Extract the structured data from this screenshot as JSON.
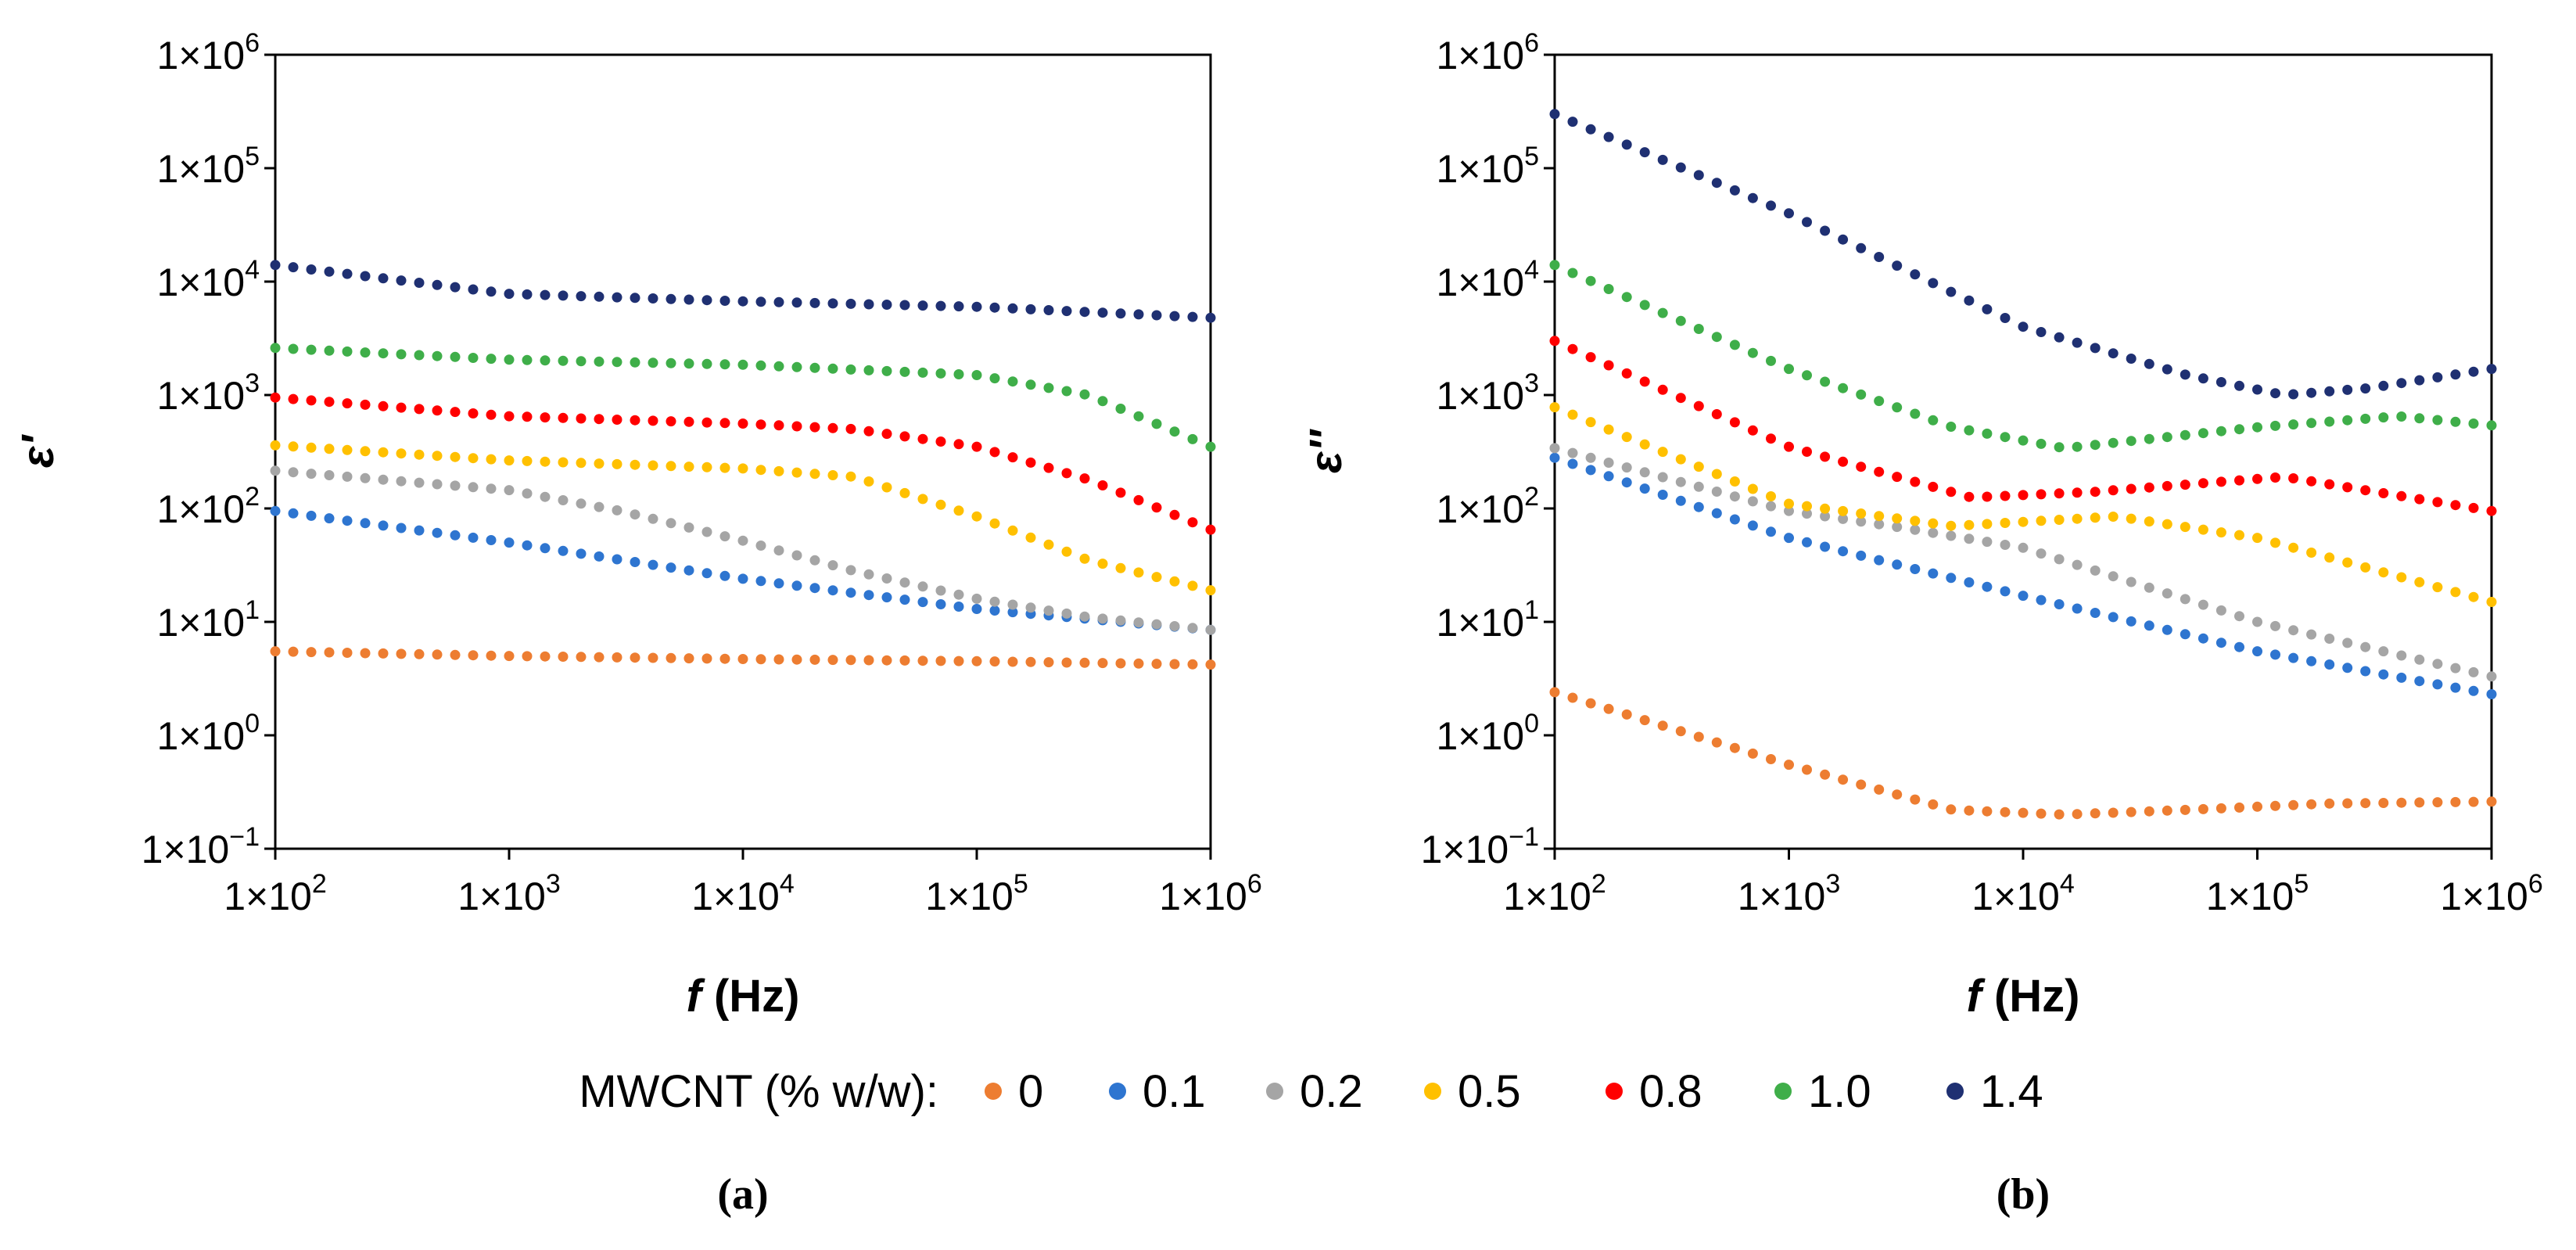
{
  "legend": {
    "title": "MWCNT (% w/w):",
    "entries": [
      {
        "label": "0",
        "color": "#ED7D31"
      },
      {
        "label": "0.1",
        "color": "#2E75D0"
      },
      {
        "label": "0.2",
        "color": "#A5A5A5"
      },
      {
        "label": "0.5",
        "color": "#FFC000"
      },
      {
        "label": "0.8",
        "color": "#FF0000"
      },
      {
        "label": "1.0",
        "color": "#3FAE49"
      },
      {
        "label": "1.4",
        "color": "#1F3072"
      }
    ]
  },
  "chart_data": [
    {
      "type": "scatter",
      "panel_label": "(a)",
      "xlabel_symbol": "f",
      "xlabel_unit": " (Hz)",
      "ylabel": "ε'",
      "x_scale": "log",
      "y_scale": "log",
      "xlim": [
        100,
        1000000
      ],
      "ylim": [
        0.1,
        1000000
      ],
      "x_tick_exponents": [
        "2",
        "3",
        "4",
        "5",
        "6"
      ],
      "y_tick_exponents": [
        "6",
        "5",
        "4",
        "3",
        "2",
        "1",
        "0",
        "−1"
      ],
      "tick_mantissa": "1×10",
      "grid": false,
      "series": [
        {
          "name": "0",
          "color": "#ED7D31",
          "x": [
            100,
            1000,
            10000,
            100000,
            1000000
          ],
          "y": [
            5.5,
            5.0,
            4.7,
            4.5,
            4.2
          ]
        },
        {
          "name": "0.1",
          "color": "#2E75D0",
          "x": [
            100,
            1000,
            10000,
            100000,
            1000000
          ],
          "y": [
            95,
            50,
            24,
            13,
            8.5
          ]
        },
        {
          "name": "0.2",
          "color": "#A5A5A5",
          "x": [
            100,
            1000,
            3000,
            10000,
            30000,
            100000,
            300000,
            1000000
          ],
          "y": [
            215,
            145,
            95,
            52,
            28,
            16,
            11,
            8.5
          ]
        },
        {
          "name": "0.5",
          "color": "#FFC000",
          "x": [
            100,
            1000,
            10000,
            30000,
            100000,
            300000,
            1000000
          ],
          "y": [
            360,
            265,
            225,
            190,
            85,
            35,
            19
          ]
        },
        {
          "name": "0.8",
          "color": "#FF0000",
          "x": [
            100,
            1000,
            10000,
            30000,
            100000,
            300000,
            1000000
          ],
          "y": [
            950,
            650,
            560,
            500,
            350,
            180,
            65
          ]
        },
        {
          "name": "1.0",
          "color": "#3FAE49",
          "x": [
            100,
            1000,
            10000,
            100000,
            300000,
            1000000
          ],
          "y": [
            2600,
            2050,
            1850,
            1500,
            1000,
            350
          ]
        },
        {
          "name": "1.4",
          "color": "#1F3072",
          "x": [
            100,
            1000,
            10000,
            100000,
            1000000
          ],
          "y": [
            14000,
            7800,
            6700,
            6000,
            4800
          ]
        }
      ]
    },
    {
      "type": "scatter",
      "panel_label": "(b)",
      "xlabel_symbol": "f",
      "xlabel_unit": " (Hz)",
      "ylabel": "ε''",
      "x_scale": "log",
      "y_scale": "log",
      "xlim": [
        100,
        1000000
      ],
      "ylim": [
        0.1,
        1000000
      ],
      "x_tick_exponents": [
        "2",
        "3",
        "4",
        "5",
        "6"
      ],
      "y_tick_exponents": [
        "6",
        "5",
        "4",
        "3",
        "2",
        "1",
        "0",
        "−1"
      ],
      "tick_mantissa": "1×10",
      "grid": false,
      "series": [
        {
          "name": "0",
          "color": "#ED7D31",
          "x": [
            100,
            1000,
            5000,
            15000,
            50000,
            200000,
            1000000
          ],
          "y": [
            2.4,
            0.55,
            0.22,
            0.2,
            0.22,
            0.25,
            0.26
          ]
        },
        {
          "name": "0.1",
          "color": "#2E75D0",
          "x": [
            100,
            1000,
            10000,
            100000,
            1000000
          ],
          "y": [
            280,
            55,
            17,
            5.5,
            2.3
          ]
        },
        {
          "name": "0.2",
          "color": "#A5A5A5",
          "x": [
            100,
            1000,
            3000,
            10000,
            100000,
            1000000
          ],
          "y": [
            340,
            95,
            68,
            45,
            10,
            3.3
          ]
        },
        {
          "name": "0.5",
          "color": "#FFC000",
          "x": [
            100,
            1000,
            5000,
            25000,
            100000,
            1000000
          ],
          "y": [
            780,
            110,
            70,
            85,
            55,
            15
          ]
        },
        {
          "name": "0.8",
          "color": "#FF0000",
          "x": [
            100,
            1000,
            6000,
            20000,
            130000,
            1000000
          ],
          "y": [
            3000,
            350,
            125,
            140,
            190,
            95
          ]
        },
        {
          "name": "1.0",
          "color": "#3FAE49",
          "x": [
            100,
            1000,
            5000,
            15000,
            100000,
            400000,
            1000000
          ],
          "y": [
            14000,
            1700,
            520,
            340,
            520,
            650,
            540
          ]
        },
        {
          "name": "1.4",
          "color": "#1F3072",
          "x": [
            100,
            1000,
            10000,
            50000,
            130000,
            300000,
            1000000
          ],
          "y": [
            300000,
            40000,
            4000,
            1500,
            1000,
            1150,
            1700
          ]
        }
      ]
    }
  ]
}
